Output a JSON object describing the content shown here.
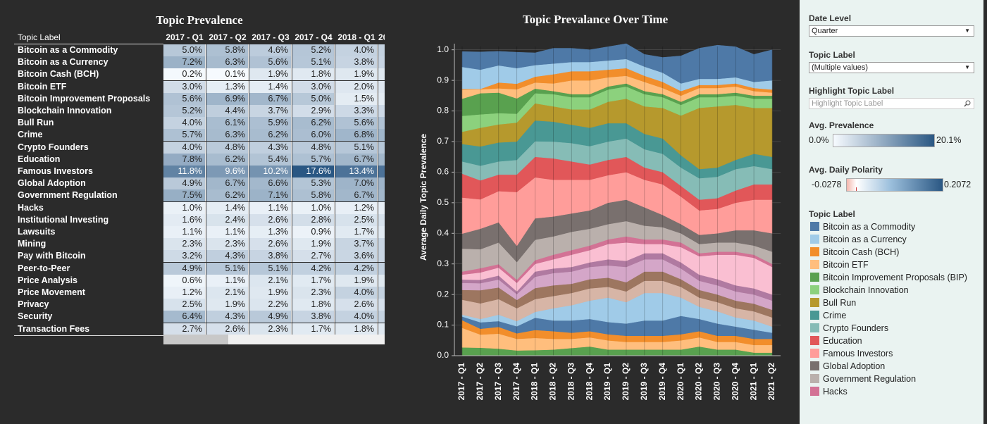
{
  "table": {
    "title": "Topic Prevalence",
    "columns": [
      "Topic Label",
      "2017 - Q1",
      "2017 - Q2",
      "2017 - Q3",
      "2017 - Q4",
      "2018 - Q1",
      "20"
    ],
    "rows": [
      {
        "label": "Bitcoin as a Commodity",
        "cells": [
          "5.0%",
          "5.8%",
          "4.6%",
          "5.2%",
          "4.0%"
        ]
      },
      {
        "label": "Bitcoin as a Currency",
        "cells": [
          "7.2%",
          "6.3%",
          "5.6%",
          "5.1%",
          "3.8%"
        ]
      },
      {
        "label": "Bitcoin Cash (BCH)",
        "cells": [
          "0.2%",
          "0.1%",
          "1.9%",
          "1.8%",
          "1.9%"
        ]
      },
      {
        "label": "Bitcoin ETF",
        "cells": [
          "3.0%",
          "1.3%",
          "1.4%",
          "3.0%",
          "2.0%"
        ]
      },
      {
        "label": "Bitcoin Improvement Proposals",
        "cells": [
          "5.6%",
          "6.9%",
          "6.7%",
          "5.0%",
          "1.5%"
        ]
      },
      {
        "label": "Blockchain Innovation",
        "cells": [
          "5.2%",
          "4.4%",
          "3.7%",
          "2.9%",
          "3.3%"
        ]
      },
      {
        "label": "Bull Run",
        "cells": [
          "4.0%",
          "6.1%",
          "5.9%",
          "6.2%",
          "5.6%"
        ]
      },
      {
        "label": "Crime",
        "cells": [
          "5.7%",
          "6.3%",
          "6.2%",
          "6.0%",
          "6.8%"
        ]
      },
      {
        "label": "Crypto Founders",
        "cells": [
          "4.0%",
          "4.8%",
          "4.3%",
          "4.8%",
          "5.1%"
        ]
      },
      {
        "label": "Education",
        "cells": [
          "7.8%",
          "6.2%",
          "5.4%",
          "5.7%",
          "6.7%"
        ]
      },
      {
        "label": "Famous Investors",
        "cells": [
          "11.8%",
          "9.6%",
          "10.2%",
          "17.6%",
          "13.4%"
        ]
      },
      {
        "label": "Global Adoption",
        "cells": [
          "4.9%",
          "6.7%",
          "6.6%",
          "5.3%",
          "7.0%"
        ]
      },
      {
        "label": "Government Regulation",
        "cells": [
          "7.5%",
          "6.2%",
          "7.1%",
          "5.8%",
          "6.7%"
        ]
      },
      {
        "label": "Hacks",
        "cells": [
          "1.0%",
          "1.4%",
          "1.1%",
          "1.0%",
          "1.2%"
        ]
      },
      {
        "label": "Institutional Investing",
        "cells": [
          "1.6%",
          "2.4%",
          "2.6%",
          "2.8%",
          "2.5%"
        ]
      },
      {
        "label": "Lawsuits",
        "cells": [
          "1.1%",
          "1.1%",
          "1.3%",
          "0.9%",
          "1.7%"
        ]
      },
      {
        "label": "Mining",
        "cells": [
          "2.3%",
          "2.3%",
          "2.6%",
          "1.9%",
          "3.7%"
        ]
      },
      {
        "label": "Pay with Bitcoin",
        "cells": [
          "3.2%",
          "4.3%",
          "3.8%",
          "2.7%",
          "3.6%"
        ]
      },
      {
        "label": "Peer-to-Peer",
        "cells": [
          "4.9%",
          "5.1%",
          "5.1%",
          "4.2%",
          "4.2%"
        ]
      },
      {
        "label": "Price Analysis",
        "cells": [
          "0.6%",
          "1.1%",
          "2.1%",
          "1.7%",
          "1.9%"
        ]
      },
      {
        "label": "Price Movement",
        "cells": [
          "1.2%",
          "2.1%",
          "1.9%",
          "2.3%",
          "4.0%"
        ]
      },
      {
        "label": "Privacy",
        "cells": [
          "2.5%",
          "1.9%",
          "2.2%",
          "1.8%",
          "2.6%"
        ]
      },
      {
        "label": "Security",
        "cells": [
          "6.4%",
          "4.3%",
          "4.9%",
          "3.8%",
          "4.0%"
        ]
      },
      {
        "label": "Transaction Fees",
        "cells": [
          "2.7%",
          "2.6%",
          "2.3%",
          "1.7%",
          "1.8%"
        ]
      }
    ]
  },
  "chart_data": {
    "type": "stacked-area",
    "title": "Topic Prevalance Over Time",
    "y_label": "Average Daily Topic Prevalence",
    "categories": [
      "2017 - Q1",
      "2017 - Q2",
      "2017 - Q3",
      "2017 - Q4",
      "2018 - Q1",
      "2018 - Q2",
      "2018 - Q3",
      "2018 - Q4",
      "2019 - Q1",
      "2019 - Q2",
      "2019 - Q3",
      "2019 - Q4",
      "2020 - Q1",
      "2020 - Q2",
      "2020 - Q3",
      "2020 - Q4",
      "2021 - Q1",
      "2021 - Q2"
    ],
    "ylim": [
      0,
      1.02
    ],
    "yticks": [
      {
        "value": 0,
        "label": "0.0"
      },
      0.1,
      0.2,
      0.3,
      0.4,
      0.5,
      0.6,
      0.7,
      0.8,
      0.9,
      {
        "value": 1,
        "label": "1.0"
      }
    ],
    "grid": true,
    "series": [
      {
        "name": "Bitcoin as a Commodity",
        "color": "#4e79a7",
        "values": [
          0.05,
          0.058,
          0.046,
          0.052,
          0.04,
          0.05,
          0.045,
          0.04,
          0.045,
          0.05,
          0.04,
          0.05,
          0.09,
          0.1,
          0.11,
          0.1,
          0.09,
          0.1
        ]
      },
      {
        "name": "Bitcoin as a Currency",
        "color": "#a0cbe8",
        "values": [
          0.072,
          0.063,
          0.056,
          0.051,
          0.038,
          0.035,
          0.03,
          0.03,
          0.03,
          0.03,
          0.03,
          0.03,
          0.025,
          0.02,
          0.02,
          0.02,
          0.02,
          0.03
        ]
      },
      {
        "name": "Bitcoin Cash (BCH)",
        "color": "#f28e2b",
        "values": [
          0.002,
          0.001,
          0.019,
          0.018,
          0.019,
          0.03,
          0.03,
          0.03,
          0.025,
          0.025,
          0.02,
          0.02,
          0.015,
          0.01,
          0.01,
          0.01,
          0.01,
          0.01
        ]
      },
      {
        "name": "Bitcoin ETF",
        "color": "#ffbe7d",
        "values": [
          0.03,
          0.013,
          0.014,
          0.03,
          0.02,
          0.025,
          0.045,
          0.045,
          0.03,
          0.025,
          0.03,
          0.02,
          0.02,
          0.02,
          0.02,
          0.02,
          0.015,
          0.01
        ]
      },
      {
        "name": "Bitcoin Improvement Proposals (BIP)",
        "color": "#59a14f",
        "values": [
          0.056,
          0.069,
          0.067,
          0.05,
          0.015,
          0.01,
          0.01,
          0.01,
          0.01,
          0.01,
          0.01,
          0.01,
          0.01,
          0.01,
          0.01,
          0.01,
          0.01,
          0.01
        ]
      },
      {
        "name": "Blockchain Innovation",
        "color": "#8cd17d",
        "values": [
          0.052,
          0.044,
          0.037,
          0.029,
          0.033,
          0.04,
          0.04,
          0.04,
          0.04,
          0.04,
          0.04,
          0.035,
          0.035,
          0.035,
          0.03,
          0.03,
          0.03,
          0.03
        ]
      },
      {
        "name": "Bull Run",
        "color": "#b6992d",
        "values": [
          0.04,
          0.061,
          0.059,
          0.062,
          0.056,
          0.05,
          0.05,
          0.06,
          0.07,
          0.08,
          0.09,
          0.1,
          0.13,
          0.2,
          0.2,
          0.18,
          0.15,
          0.16
        ]
      },
      {
        "name": "Crime",
        "color": "#499894",
        "values": [
          0.057,
          0.063,
          0.062,
          0.06,
          0.068,
          0.065,
          0.06,
          0.06,
          0.06,
          0.05,
          0.05,
          0.05,
          0.04,
          0.03,
          0.03,
          0.03,
          0.04,
          0.04
        ]
      },
      {
        "name": "Crypto Founders",
        "color": "#86bcb6",
        "values": [
          0.04,
          0.048,
          0.043,
          0.048,
          0.051,
          0.055,
          0.06,
          0.06,
          0.06,
          0.06,
          0.06,
          0.06,
          0.06,
          0.07,
          0.07,
          0.07,
          0.06,
          0.05
        ]
      },
      {
        "name": "Education",
        "color": "#e15759",
        "values": [
          0.078,
          0.062,
          0.054,
          0.057,
          0.067,
          0.07,
          0.06,
          0.05,
          0.05,
          0.05,
          0.04,
          0.04,
          0.035,
          0.035,
          0.035,
          0.04,
          0.05,
          0.05
        ]
      },
      {
        "name": "Famous Investors",
        "color": "#ff9d9a",
        "values": [
          0.118,
          0.096,
          0.102,
          0.176,
          0.134,
          0.12,
          0.11,
          0.1,
          0.09,
          0.09,
          0.09,
          0.1,
          0.09,
          0.08,
          0.08,
          0.09,
          0.1,
          0.11
        ]
      },
      {
        "name": "Global Adoption",
        "color": "#79706e",
        "values": [
          0.049,
          0.067,
          0.066,
          0.053,
          0.07,
          0.065,
          0.06,
          0.06,
          0.07,
          0.07,
          0.06,
          0.04,
          0.03,
          0.03,
          0.03,
          0.04,
          0.05,
          0.06
        ]
      },
      {
        "name": "Government Regulation",
        "color": "#bab0ac",
        "values": [
          0.075,
          0.062,
          0.071,
          0.058,
          0.067,
          0.06,
          0.06,
          0.055,
          0.05,
          0.05,
          0.045,
          0.04,
          0.03,
          0.03,
          0.03,
          0.03,
          0.03,
          0.04
        ]
      },
      {
        "name": "Hacks",
        "color": "#d37295",
        "values": [
          0.01,
          0.014,
          0.011,
          0.01,
          0.012,
          0.015,
          0.015,
          0.015,
          0.015,
          0.02,
          0.015,
          0.015,
          0.015,
          0.01,
          0.01,
          0.01,
          0.01,
          0.01
        ]
      },
      {
        "name": "Institutional Investing",
        "color": "#fabfd2",
        "values": [
          0.016,
          0.024,
          0.026,
          0.028,
          0.025,
          0.03,
          0.04,
          0.04,
          0.05,
          0.06,
          0.03,
          0.03,
          0.05,
          0.06,
          0.08,
          0.1,
          0.1,
          0.09
        ]
      },
      {
        "name": "Lawsuits",
        "color": "#b07aa1",
        "values": [
          0.011,
          0.011,
          0.013,
          0.009,
          0.017,
          0.015,
          0.015,
          0.015,
          0.02,
          0.02,
          0.02,
          0.02,
          0.02,
          0.02,
          0.02,
          0.02,
          0.02,
          0.02
        ]
      },
      {
        "name": "Mining",
        "color": "#d4a6c8",
        "values": [
          0.023,
          0.023,
          0.026,
          0.019,
          0.037,
          0.04,
          0.04,
          0.04,
          0.04,
          0.05,
          0.04,
          0.04,
          0.035,
          0.03,
          0.03,
          0.03,
          0.03,
          0.03
        ]
      },
      {
        "name": "Pay with Bitcoin",
        "color": "#9d7660",
        "values": [
          0.032,
          0.043,
          0.038,
          0.027,
          0.036,
          0.035,
          0.03,
          0.03,
          0.03,
          0.03,
          0.03,
          0.03,
          0.025,
          0.025,
          0.025,
          0.025,
          0.025,
          0.025
        ]
      },
      {
        "name": "Peer-to-Peer",
        "color": "#d7b5a6",
        "values": [
          0.049,
          0.051,
          0.051,
          0.042,
          0.042,
          0.04,
          0.04,
          0.04,
          0.035,
          0.035,
          0.04,
          0.04,
          0.035,
          0.03,
          0.03,
          0.03,
          0.03,
          0.03
        ]
      },
      {
        "name": "Price Analysis",
        "color": "#a0cbe8",
        "values": [
          0.006,
          0.011,
          0.021,
          0.017,
          0.019,
          0.04,
          0.05,
          0.06,
          0.08,
          0.07,
          0.09,
          0.09,
          0.06,
          0.04,
          0.04,
          0.03,
          0.03,
          0.02
        ]
      },
      {
        "name": "Price Movement",
        "color": "#4e79a7",
        "values": [
          0.012,
          0.021,
          0.019,
          0.023,
          0.04,
          0.035,
          0.04,
          0.04,
          0.04,
          0.04,
          0.05,
          0.05,
          0.06,
          0.04,
          0.04,
          0.03,
          0.03,
          0.02
        ]
      },
      {
        "name": "Privacy",
        "color": "#f28e2b",
        "values": [
          0.025,
          0.019,
          0.022,
          0.018,
          0.026,
          0.025,
          0.02,
          0.02,
          0.02,
          0.02,
          0.02,
          0.02,
          0.02,
          0.02,
          0.02,
          0.02,
          0.02,
          0.02
        ]
      },
      {
        "name": "Security",
        "color": "#ffbe7d",
        "values": [
          0.064,
          0.043,
          0.049,
          0.038,
          0.04,
          0.035,
          0.03,
          0.03,
          0.03,
          0.025,
          0.025,
          0.025,
          0.03,
          0.03,
          0.025,
          0.025,
          0.025,
          0.025
        ]
      },
      {
        "name": "Transaction Fees",
        "color": "#59a14f",
        "values": [
          0.027,
          0.026,
          0.023,
          0.017,
          0.018,
          0.02,
          0.025,
          0.03,
          0.02,
          0.02,
          0.02,
          0.02,
          0.02,
          0.03,
          0.02,
          0.02,
          0.01,
          0.01
        ]
      }
    ]
  },
  "panel": {
    "date_level": {
      "label": "Date Level",
      "value": "Quarter"
    },
    "topic_filter": {
      "label": "Topic Label",
      "value": "(Multiple values)"
    },
    "highlight": {
      "label": "Highlight Topic Label",
      "placeholder": "Highlight Topic Label"
    },
    "prevalence_legend": {
      "title": "Avg. Prevalence",
      "min": "0.0%",
      "max": "20.1%"
    },
    "polarity_legend": {
      "title": "Avg. Daily Polarity",
      "min": "-0.0278",
      "max": "0.2072"
    },
    "color_legend_title": "Topic Label"
  }
}
